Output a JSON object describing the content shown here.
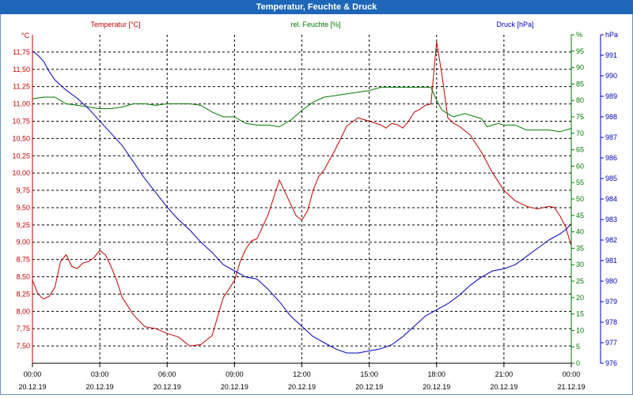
{
  "window": {
    "title": "Temperatur, Feuchte & Druck"
  },
  "colors": {
    "temperature": "#c00000",
    "humidity": "#007a00",
    "pressure": "#0000b4",
    "grid": "#000000"
  },
  "chart_data": {
    "type": "line",
    "title": "Temperatur, Feuchte & Druck",
    "grid": true,
    "x_range_hours": [
      0,
      24
    ],
    "x_ticks": [
      {
        "time": "00:00",
        "date": "20.12.19"
      },
      {
        "time": "03:00",
        "date": "20.12.19"
      },
      {
        "time": "06:00",
        "date": "20.12.19"
      },
      {
        "time": "09:00",
        "date": "20.12.19"
      },
      {
        "time": "12:00",
        "date": "20.12.19"
      },
      {
        "time": "15:00",
        "date": "20.12.19"
      },
      {
        "time": "18:00",
        "date": "20.12.19"
      },
      {
        "time": "21:00",
        "date": "20.12.19"
      },
      {
        "time": "00:00",
        "date": "21.12.19"
      }
    ],
    "axes": {
      "temperature": {
        "label": "Temperatur [°C]",
        "unit": "°C",
        "range": [
          7.25,
          12.0
        ],
        "ticks": [
          "7,50",
          "7,75",
          "8,00",
          "8,25",
          "8,50",
          "8,75",
          "9,00",
          "9,25",
          "9,50",
          "9,75",
          "10,00",
          "10,25",
          "10,50",
          "10,75",
          "11,00",
          "11,25",
          "11,50",
          "11,75"
        ]
      },
      "humidity": {
        "label": "rel. Feuchte [%]",
        "unit": "%",
        "range": [
          0,
          100
        ],
        "ticks": [
          "0",
          "5",
          "10",
          "15",
          "20",
          "25",
          "30",
          "35",
          "40",
          "45",
          "50",
          "55",
          "60",
          "65",
          "70",
          "75",
          "80",
          "85",
          "90",
          "95",
          "%"
        ]
      },
      "pressure": {
        "label": "Druck [hPa]",
        "unit": "hPa",
        "range": [
          976,
          992
        ],
        "ticks": [
          "976",
          "977",
          "978",
          "979",
          "980",
          "981",
          "982",
          "983",
          "984",
          "985",
          "986",
          "987",
          "988",
          "989",
          "990",
          "991",
          "hPa"
        ]
      }
    },
    "series": [
      {
        "name": "Temperatur [°C]",
        "axis": "temperature",
        "x": [
          0,
          0.25,
          0.5,
          0.75,
          1,
          1.25,
          1.5,
          1.75,
          2,
          2.25,
          2.5,
          2.75,
          3,
          3.25,
          3.5,
          3.75,
          4,
          4.5,
          5,
          5.5,
          6,
          6.5,
          7,
          7.5,
          8,
          8.5,
          8.75,
          9,
          9.25,
          9.5,
          9.75,
          10,
          10.5,
          11,
          11.5,
          11.75,
          12,
          12.25,
          12.5,
          12.75,
          13,
          13.5,
          14,
          14.5,
          15,
          15.5,
          15.75,
          16,
          16.25,
          16.5,
          16.75,
          17,
          17.25,
          17.5,
          17.75,
          18,
          18.25,
          18.5,
          18.75,
          19,
          19.5,
          20,
          20.5,
          21,
          21.5,
          22,
          22.5,
          23,
          23.25,
          23.5,
          23.75,
          24
        ],
        "values": [
          8.45,
          8.25,
          8.18,
          8.22,
          8.35,
          8.72,
          8.82,
          8.65,
          8.62,
          8.7,
          8.72,
          8.78,
          8.88,
          8.82,
          8.65,
          8.45,
          8.2,
          7.95,
          7.78,
          7.75,
          7.68,
          7.63,
          7.5,
          7.52,
          7.65,
          8.2,
          8.32,
          8.45,
          8.72,
          8.9,
          9.02,
          9.05,
          9.4,
          9.9,
          9.55,
          9.38,
          9.32,
          9.45,
          9.75,
          9.95,
          10.05,
          10.35,
          10.68,
          10.8,
          10.75,
          10.7,
          10.65,
          10.72,
          10.7,
          10.65,
          10.75,
          10.88,
          10.92,
          10.98,
          11.0,
          11.9,
          11.4,
          10.8,
          10.72,
          10.68,
          10.55,
          10.3,
          10.0,
          9.75,
          9.6,
          9.52,
          9.48,
          9.52,
          9.5,
          9.38,
          9.22,
          8.95
        ]
      },
      {
        "name": "rel. Feuchte [%]",
        "axis": "humidity",
        "x": [
          0,
          0.5,
          1,
          1.5,
          2,
          2.5,
          3,
          3.5,
          4,
          4.5,
          5,
          5.5,
          6,
          6.5,
          7,
          7.5,
          8,
          8.5,
          9,
          9.5,
          10,
          10.5,
          11,
          11.5,
          12,
          12.5,
          13,
          13.5,
          14,
          14.5,
          15,
          15.5,
          16,
          16.5,
          17,
          17.5,
          17.75,
          18,
          18.25,
          18.5,
          18.75,
          19,
          19.25,
          19.5,
          19.75,
          20,
          20.25,
          20.5,
          20.75,
          21,
          21.5,
          22,
          22.5,
          23,
          23.5,
          24
        ],
        "values": [
          80.5,
          81,
          81,
          79,
          78.5,
          78,
          77.5,
          77.5,
          78,
          79,
          79,
          78.5,
          79,
          79,
          79,
          78.5,
          76.5,
          75,
          75,
          73,
          72.5,
          72.5,
          72,
          74,
          77,
          79.5,
          81,
          81.5,
          82,
          82.5,
          83,
          84,
          84,
          84,
          84,
          84,
          84,
          80,
          77,
          76,
          75,
          75.5,
          76,
          75.5,
          75,
          74.5,
          72,
          72.5,
          73,
          72.5,
          72.5,
          71,
          71,
          71,
          70.5,
          71.5
        ]
      },
      {
        "name": "Druck [hPa]",
        "axis": "pressure",
        "x": [
          0,
          0.25,
          0.5,
          0.75,
          1,
          1.5,
          2,
          2.5,
          3,
          3.5,
          4,
          4.5,
          5,
          5.5,
          6,
          6.5,
          7,
          7.5,
          8,
          8.5,
          9,
          9.5,
          10,
          10.5,
          11,
          11.5,
          12,
          12.5,
          13,
          13.5,
          14,
          14.5,
          15,
          15.5,
          16,
          16.5,
          17,
          17.5,
          18,
          18.5,
          19,
          19.5,
          20,
          20.5,
          21,
          21.5,
          22,
          22.5,
          23,
          23.5,
          23.75,
          24
        ],
        "values": [
          991.2,
          991.0,
          990.7,
          990.2,
          989.8,
          989.3,
          988.9,
          988.4,
          987.8,
          987.2,
          986.6,
          985.8,
          985.0,
          984.3,
          983.6,
          983.0,
          982.5,
          981.9,
          981.4,
          980.8,
          980.5,
          980.2,
          980.1,
          979.6,
          979.0,
          978.3,
          977.8,
          977.3,
          977.0,
          976.7,
          976.5,
          976.5,
          976.6,
          976.7,
          976.9,
          977.3,
          977.8,
          978.3,
          978.6,
          978.9,
          979.3,
          979.8,
          980.2,
          980.5,
          980.6,
          980.8,
          981.2,
          981.6,
          982.0,
          982.3,
          982.5,
          982.8
        ]
      }
    ]
  }
}
